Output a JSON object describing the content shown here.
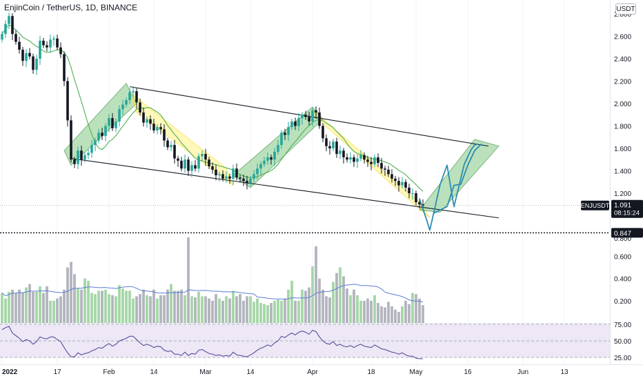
{
  "header": {
    "symbol_title": "EnjinCoin / TetherUS, 1D, BINANCE",
    "currency": "USDT"
  },
  "colors": {
    "up": "#26a69a",
    "down": "#131722",
    "ma": "#4caf50",
    "channel": "#131722",
    "green_zone": "#4caf50",
    "yellow_zone": "#ffeb3b",
    "projection": "#2b8cb0",
    "volume_up": "#a5d6a7",
    "volume_down": "#b2b5be",
    "volume_ma": "#5b7bd5",
    "rsi_line": "#4a3f8f",
    "rsi_band": "#ede7f6"
  },
  "price_badge": {
    "symbol": "ENJUSDT",
    "price": "1.091",
    "countdown": "08:15:24"
  },
  "level_badge": {
    "price": "0.847"
  },
  "chart_data": [
    {
      "type": "candlestick",
      "x": [
        "2022-01-01",
        "2022-01-02",
        "2022-01-03",
        "2022-01-04",
        "2022-01-05",
        "2022-01-06",
        "2022-01-07",
        "2022-01-08",
        "2022-01-09",
        "2022-01-10",
        "2022-01-11",
        "2022-01-12",
        "2022-01-13",
        "2022-01-14",
        "2022-01-15",
        "2022-01-16",
        "2022-01-17",
        "2022-01-18",
        "2022-01-19",
        "2022-01-20",
        "2022-01-21",
        "2022-01-22",
        "2022-01-23",
        "2022-01-24",
        "2022-01-25",
        "2022-01-26",
        "2022-01-27",
        "2022-01-28",
        "2022-01-29",
        "2022-01-30",
        "2022-01-31",
        "2022-02-01",
        "2022-02-02",
        "2022-02-03",
        "2022-02-04",
        "2022-02-05",
        "2022-02-06",
        "2022-02-07",
        "2022-02-08",
        "2022-02-09",
        "2022-02-10",
        "2022-02-11",
        "2022-02-12",
        "2022-02-13",
        "2022-02-14",
        "2022-02-15",
        "2022-02-16",
        "2022-02-17",
        "2022-02-18",
        "2022-02-19",
        "2022-02-20",
        "2022-02-21",
        "2022-02-22",
        "2022-02-23",
        "2022-02-24",
        "2022-02-25",
        "2022-02-26",
        "2022-02-27",
        "2022-02-28",
        "2022-03-01",
        "2022-03-02",
        "2022-03-03",
        "2022-03-04",
        "2022-03-05",
        "2022-03-06",
        "2022-03-07",
        "2022-03-08",
        "2022-03-09",
        "2022-03-10",
        "2022-03-11",
        "2022-03-12",
        "2022-03-13",
        "2022-03-14",
        "2022-03-15",
        "2022-03-16",
        "2022-03-17",
        "2022-03-18",
        "2022-03-19",
        "2022-03-20",
        "2022-03-21",
        "2022-03-22",
        "2022-03-23",
        "2022-03-24",
        "2022-03-25",
        "2022-03-26",
        "2022-03-27",
        "2022-03-28",
        "2022-03-29",
        "2022-03-30",
        "2022-03-31",
        "2022-04-01",
        "2022-04-02",
        "2022-04-03",
        "2022-04-04",
        "2022-04-05",
        "2022-04-06",
        "2022-04-07",
        "2022-04-08",
        "2022-04-09",
        "2022-04-10",
        "2022-04-11",
        "2022-04-12",
        "2022-04-13",
        "2022-04-14",
        "2022-04-15",
        "2022-04-16",
        "2022-04-17",
        "2022-04-18",
        "2022-04-19",
        "2022-04-20",
        "2022-04-21",
        "2022-04-22",
        "2022-04-23",
        "2022-04-24",
        "2022-04-25",
        "2022-04-26",
        "2022-04-27",
        "2022-04-28",
        "2022-04-29",
        "2022-04-30",
        "2022-05-01",
        "2022-05-02",
        "2022-05-03"
      ],
      "close": [
        2.62,
        2.71,
        2.78,
        2.62,
        2.55,
        2.48,
        2.38,
        2.45,
        2.42,
        2.3,
        2.4,
        2.56,
        2.52,
        2.5,
        2.57,
        2.58,
        2.5,
        2.44,
        2.2,
        1.85,
        1.5,
        1.46,
        1.58,
        1.5,
        1.54,
        1.56,
        1.63,
        1.67,
        1.74,
        1.71,
        1.8,
        1.87,
        1.78,
        1.84,
        1.95,
        1.99,
        2.03,
        2.1,
        2.11,
        2.01,
        1.92,
        1.83,
        1.86,
        1.82,
        1.76,
        1.79,
        1.77,
        1.67,
        1.61,
        1.63,
        1.51,
        1.49,
        1.42,
        1.5,
        1.4,
        1.45,
        1.42,
        1.53,
        1.55,
        1.5,
        1.44,
        1.41,
        1.36,
        1.37,
        1.33,
        1.35,
        1.33,
        1.42,
        1.34,
        1.33,
        1.31,
        1.29,
        1.33,
        1.37,
        1.42,
        1.46,
        1.49,
        1.52,
        1.5,
        1.57,
        1.63,
        1.74,
        1.72,
        1.79,
        1.84,
        1.8,
        1.87,
        1.9,
        1.88,
        1.84,
        1.94,
        1.92,
        1.8,
        1.69,
        1.62,
        1.6,
        1.66,
        1.55,
        1.58,
        1.52,
        1.5,
        1.52,
        1.48,
        1.51,
        1.54,
        1.5,
        1.48,
        1.46,
        1.52,
        1.47,
        1.42,
        1.41,
        1.37,
        1.33,
        1.31,
        1.27,
        1.3,
        1.25,
        1.2,
        1.2,
        1.12,
        1.1,
        1.09
      ],
      "open": [
        2.57,
        2.62,
        2.71,
        2.78,
        2.62,
        2.55,
        2.48,
        2.38,
        2.45,
        2.42,
        2.3,
        2.4,
        2.56,
        2.52,
        2.5,
        2.57,
        2.58,
        2.5,
        2.44,
        2.2,
        1.85,
        1.5,
        1.46,
        1.58,
        1.5,
        1.54,
        1.56,
        1.63,
        1.67,
        1.74,
        1.71,
        1.8,
        1.87,
        1.78,
        1.84,
        1.95,
        1.99,
        2.03,
        2.1,
        2.11,
        2.01,
        1.92,
        1.83,
        1.86,
        1.82,
        1.76,
        1.79,
        1.77,
        1.67,
        1.61,
        1.63,
        1.51,
        1.49,
        1.42,
        1.5,
        1.4,
        1.45,
        1.42,
        1.53,
        1.55,
        1.5,
        1.44,
        1.41,
        1.36,
        1.37,
        1.33,
        1.35,
        1.33,
        1.42,
        1.34,
        1.33,
        1.31,
        1.29,
        1.33,
        1.37,
        1.42,
        1.46,
        1.49,
        1.52,
        1.5,
        1.57,
        1.63,
        1.74,
        1.72,
        1.79,
        1.84,
        1.8,
        1.87,
        1.9,
        1.88,
        1.84,
        1.94,
        1.92,
        1.8,
        1.69,
        1.62,
        1.6,
        1.66,
        1.55,
        1.58,
        1.52,
        1.5,
        1.52,
        1.48,
        1.51,
        1.54,
        1.5,
        1.48,
        1.46,
        1.52,
        1.47,
        1.42,
        1.41,
        1.37,
        1.33,
        1.31,
        1.27,
        1.3,
        1.25,
        1.2,
        1.2,
        1.12,
        1.1
      ],
      "volume": [
        0.27,
        0.22,
        0.28,
        0.3,
        0.27,
        0.3,
        0.27,
        0.32,
        0.35,
        0.28,
        0.28,
        0.33,
        0.27,
        0.33,
        0.2,
        0.2,
        0.22,
        0.24,
        0.3,
        0.5,
        0.55,
        0.44,
        0.31,
        0.3,
        0.4,
        0.38,
        0.27,
        0.26,
        0.29,
        0.29,
        0.3,
        0.26,
        0.25,
        0.24,
        0.34,
        0.31,
        0.29,
        0.29,
        0.22,
        0.24,
        0.26,
        0.3,
        0.25,
        0.24,
        0.3,
        0.22,
        0.25,
        0.25,
        0.3,
        0.35,
        0.29,
        0.29,
        0.3,
        0.25,
        0.77,
        0.24,
        0.23,
        0.28,
        0.24,
        0.24,
        0.22,
        0.2,
        0.26,
        0.22,
        0.2,
        0.24,
        0.22,
        0.29,
        0.24,
        0.26,
        0.2,
        0.24,
        0.24,
        0.19,
        0.22,
        0.18,
        0.17,
        0.16,
        0.18,
        0.2,
        0.21,
        0.2,
        0.22,
        0.3,
        0.38,
        0.2,
        0.2,
        0.3,
        0.29,
        0.32,
        0.51,
        0.69,
        0.4,
        0.3,
        0.24,
        0.23,
        0.37,
        0.45,
        0.5,
        0.42,
        0.31,
        0.25,
        0.3,
        0.25,
        0.2,
        0.2,
        0.22,
        0.2,
        0.25,
        0.18,
        0.15,
        0.14,
        0.19,
        0.15,
        0.12,
        0.1,
        0.15,
        0.2,
        0.17,
        0.27,
        0.26,
        0.22,
        0.16
      ],
      "ylim": [
        0.6,
        2.8
      ],
      "price_ticks": [
        "0.600",
        "0.800",
        "1.200",
        "1.400",
        "1.600",
        "1.800",
        "2.000",
        "2.200",
        "2.400",
        "2.600",
        "2.800"
      ],
      "volume_scale_ticks": [
        "0.200",
        "0.400",
        "0.600"
      ],
      "rsi_ticks": [
        "25.00",
        "50.00",
        "75.00"
      ],
      "rsi": [
        67,
        70,
        72,
        62,
        58,
        54,
        49,
        52,
        50,
        45,
        49,
        56,
        54,
        53,
        56,
        56,
        52,
        49,
        40,
        32,
        26,
        26,
        32,
        29,
        31,
        32,
        35,
        37,
        40,
        39,
        43,
        46,
        42,
        45,
        50,
        52,
        54,
        57,
        57,
        52,
        47,
        43,
        45,
        43,
        40,
        42,
        41,
        36,
        34,
        35,
        30,
        30,
        28,
        33,
        28,
        31,
        30,
        36,
        37,
        34,
        31,
        30,
        28,
        29,
        27,
        28,
        27,
        33,
        29,
        28,
        27,
        26,
        29,
        32,
        36,
        39,
        41,
        44,
        42,
        47,
        50,
        57,
        55,
        59,
        62,
        59,
        63,
        65,
        63,
        60,
        66,
        64,
        56,
        50,
        46,
        45,
        49,
        43,
        45,
        42,
        41,
        43,
        40,
        43,
        45,
        42,
        41,
        40,
        44,
        41,
        38,
        37,
        35,
        33,
        32,
        30,
        32,
        29,
        27,
        27,
        24,
        23,
        23
      ],
      "date_labels": [
        {
          "label": "2022",
          "date": "2022-01-01"
        },
        {
          "label": "17",
          "date": "2022-01-17"
        },
        {
          "label": "Feb",
          "date": "2022-02-01"
        },
        {
          "label": "14",
          "date": "2022-02-14"
        },
        {
          "label": "Mar",
          "date": "2022-03-01"
        },
        {
          "label": "14",
          "date": "2022-03-14"
        },
        {
          "label": "Apr",
          "date": "2022-04-01"
        },
        {
          "label": "18",
          "date": "2022-04-18"
        },
        {
          "label": "May",
          "date": "2022-05-01"
        },
        {
          "label": "16",
          "date": "2022-05-16"
        },
        {
          "label": "Jun",
          "date": "2022-06-01"
        },
        {
          "label": "13",
          "date": "2022-06-13"
        }
      ],
      "horizontal_level": 0.847,
      "channel_upper": [
        {
          "date": "2022-02-07",
          "price": 2.15
        },
        {
          "date": "2022-05-22",
          "price": 1.62
        }
      ],
      "channel_lower": [
        {
          "date": "2022-01-21",
          "price": 1.51
        },
        {
          "date": "2022-05-25",
          "price": 0.98
        }
      ],
      "projection_path": [
        {
          "date": "2022-05-02",
          "price": 1.15
        },
        {
          "date": "2022-05-04",
          "price": 0.97
        },
        {
          "date": "2022-05-05",
          "price": 0.87
        },
        {
          "date": "2022-05-08",
          "price": 1.28
        },
        {
          "date": "2022-05-10",
          "price": 1.45
        },
        {
          "date": "2022-05-12",
          "price": 1.08
        },
        {
          "date": "2022-05-15",
          "price": 1.46
        },
        {
          "date": "2022-05-17",
          "price": 1.59
        },
        {
          "date": "2022-05-18",
          "price": 1.63
        },
        {
          "date": "2022-05-19",
          "price": 1.64
        }
      ],
      "projection_path_2": [
        {
          "date": "2022-05-06",
          "price": 1.02
        },
        {
          "date": "2022-05-10",
          "price": 1.08
        },
        {
          "date": "2022-05-12",
          "price": 1.27
        },
        {
          "date": "2022-05-14",
          "price": 1.28
        },
        {
          "date": "2022-05-16",
          "price": 1.45
        },
        {
          "date": "2022-05-18",
          "price": 1.58
        },
        {
          "date": "2022-05-20",
          "price": 1.64
        }
      ]
    },
    {
      "type": "annotation_zones",
      "zones": [
        {
          "kind": "green",
          "points": [
            {
              "date": "2022-01-19",
              "price": 1.58
            },
            {
              "date": "2022-02-06",
              "price": 2.18
            },
            {
              "date": "2022-02-09",
              "price": 2.0
            },
            {
              "date": "2022-01-21",
              "price": 1.45
            }
          ]
        },
        {
          "kind": "yellow",
          "points": [
            {
              "date": "2022-02-07",
              "price": 2.1
            },
            {
              "date": "2022-03-07",
              "price": 1.42
            },
            {
              "date": "2022-03-09",
              "price": 1.27
            },
            {
              "date": "2022-02-09",
              "price": 1.92
            }
          ]
        },
        {
          "kind": "green",
          "points": [
            {
              "date": "2022-03-09",
              "price": 1.36
            },
            {
              "date": "2022-04-01",
              "price": 1.97
            },
            {
              "date": "2022-04-04",
              "price": 1.86
            },
            {
              "date": "2022-03-14",
              "price": 1.25
            }
          ]
        },
        {
          "kind": "yellow",
          "points": [
            {
              "date": "2022-04-01",
              "price": 1.94
            },
            {
              "date": "2022-05-02",
              "price": 1.12
            },
            {
              "date": "2022-05-05",
              "price": 0.98
            },
            {
              "date": "2022-04-04",
              "price": 1.82
            }
          ]
        },
        {
          "kind": "green",
          "points": [
            {
              "date": "2022-05-02",
              "price": 1.05
            },
            {
              "date": "2022-05-18",
              "price": 1.68
            },
            {
              "date": "2022-05-25",
              "price": 1.62
            },
            {
              "date": "2022-05-08",
              "price": 1.03
            }
          ]
        }
      ]
    }
  ]
}
